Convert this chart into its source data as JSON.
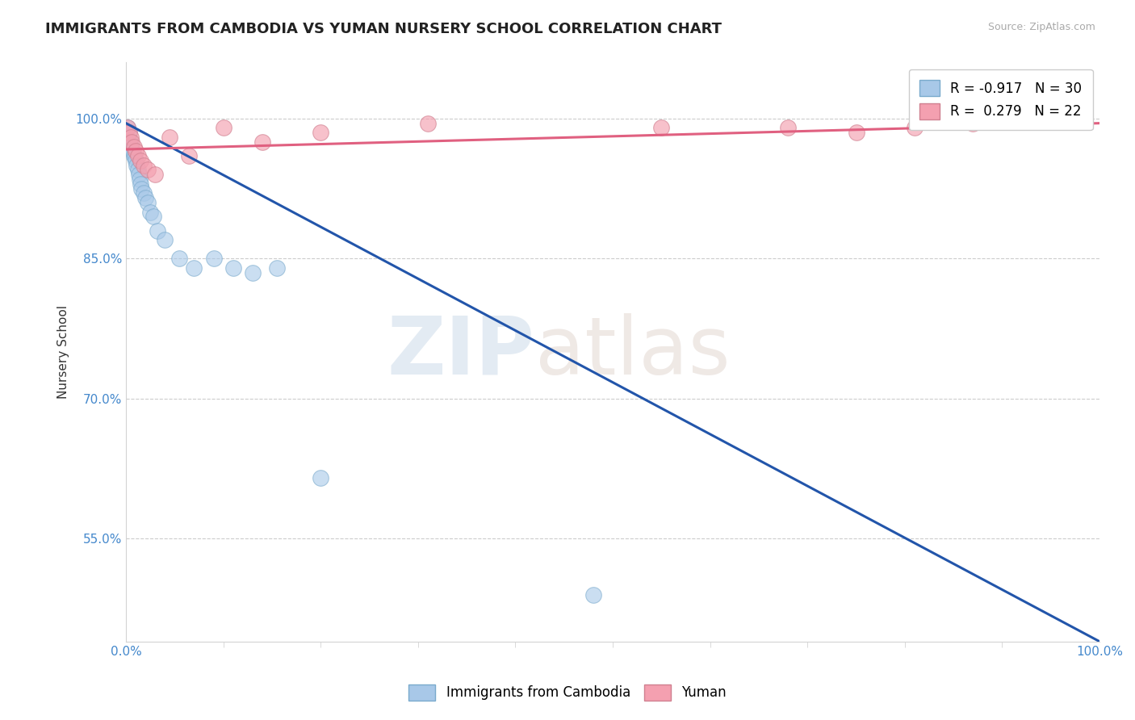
{
  "title": "IMMIGRANTS FROM CAMBODIA VS YUMAN NURSERY SCHOOL CORRELATION CHART",
  "source_text": "Source: ZipAtlas.com",
  "xlabel": "",
  "ylabel": "Nursery School",
  "legend_label_blue": "Immigrants from Cambodia",
  "legend_label_pink": "Yuman",
  "r_blue": -0.917,
  "n_blue": 30,
  "r_pink": 0.279,
  "n_pink": 22,
  "xmin": 0.0,
  "xmax": 1.0,
  "ymin": 0.44,
  "ymax": 1.06,
  "yticks": [
    0.55,
    0.7,
    0.85,
    1.0
  ],
  "ytick_labels": [
    "55.0%",
    "70.0%",
    "85.0%",
    "100.0%"
  ],
  "xtick_labels": [
    "0.0%",
    "100.0%"
  ],
  "watermark_zip": "ZIP",
  "watermark_atlas": "atlas",
  "blue_color": "#a8c8e8",
  "pink_color": "#f4a0b0",
  "trendline_blue": "#2255aa",
  "trendline_pink": "#e06080",
  "blue_scatter_x": [
    0.002,
    0.003,
    0.004,
    0.005,
    0.006,
    0.007,
    0.008,
    0.009,
    0.01,
    0.011,
    0.012,
    0.013,
    0.014,
    0.015,
    0.016,
    0.018,
    0.02,
    0.022,
    0.025,
    0.028,
    0.032,
    0.04,
    0.055,
    0.07,
    0.09,
    0.11,
    0.13,
    0.155,
    0.2,
    0.48
  ],
  "blue_scatter_y": [
    0.99,
    0.985,
    0.975,
    0.97,
    0.968,
    0.965,
    0.96,
    0.958,
    0.955,
    0.95,
    0.945,
    0.94,
    0.935,
    0.93,
    0.925,
    0.92,
    0.915,
    0.91,
    0.9,
    0.895,
    0.88,
    0.87,
    0.85,
    0.84,
    0.85,
    0.84,
    0.835,
    0.84,
    0.615,
    0.49
  ],
  "pink_scatter_x": [
    0.002,
    0.003,
    0.005,
    0.006,
    0.008,
    0.01,
    0.012,
    0.015,
    0.018,
    0.022,
    0.03,
    0.045,
    0.065,
    0.1,
    0.14,
    0.2,
    0.31,
    0.55,
    0.68,
    0.75,
    0.81,
    0.87
  ],
  "pink_scatter_y": [
    0.99,
    0.985,
    0.98,
    0.975,
    0.97,
    0.965,
    0.96,
    0.955,
    0.95,
    0.945,
    0.94,
    0.98,
    0.96,
    0.99,
    0.975,
    0.985,
    0.995,
    0.99,
    0.99,
    0.985,
    0.99,
    0.995
  ],
  "blue_trendline_x0": 0.0,
  "blue_trendline_y0": 0.995,
  "blue_trendline_x1": 1.0,
  "blue_trendline_y1": 0.44,
  "pink_trendline_x0": 0.0,
  "pink_trendline_y0": 0.967,
  "pink_trendline_x1": 1.0,
  "pink_trendline_y1": 0.995
}
